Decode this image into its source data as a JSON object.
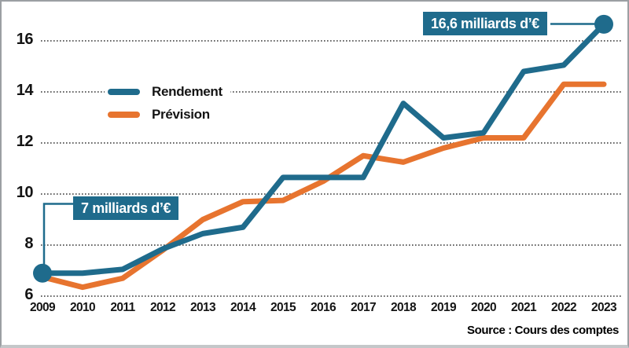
{
  "source": "Source : Cours des comptes",
  "annotations": {
    "start": {
      "label": "7 milliards d’€"
    },
    "end": {
      "label": "16,6 milliards d’€"
    }
  },
  "colors": {
    "rendement": "#1f6b8c",
    "prevision": "#e7742f",
    "annotation_bg": "#1f6b8c",
    "grid": "#333333",
    "border": "#9b9fa3"
  },
  "chart_data": {
    "type": "line",
    "title": "",
    "xlabel": "",
    "ylabel": "milliards d'€",
    "categories": [
      "2009",
      "2010",
      "2011",
      "2012",
      "2013",
      "2014",
      "2015",
      "2016",
      "2017",
      "2018",
      "2019",
      "2020",
      "2021",
      "2022",
      "2023"
    ],
    "series": [
      {
        "name": "Rendement",
        "color_key": "rendement",
        "values": [
          6.9,
          6.9,
          7.05,
          7.85,
          8.45,
          8.7,
          10.65,
          10.65,
          10.65,
          13.55,
          12.2,
          12.4,
          14.8,
          15.05,
          16.65
        ]
      },
      {
        "name": "Prévision",
        "color_key": "prevision",
        "values": [
          6.75,
          6.35,
          6.7,
          7.8,
          9.0,
          9.7,
          9.75,
          10.5,
          11.5,
          11.25,
          11.8,
          12.2,
          12.2,
          14.3,
          14.3
        ]
      }
    ],
    "yticks": [
      6,
      8,
      10,
      12,
      14,
      16
    ],
    "ylim": [
      6,
      17.3
    ],
    "grid": "dotted-horizontal",
    "legend_position": "top-left-inset",
    "markers": [
      {
        "series": "Rendement",
        "category": "2009",
        "value": 6.9
      },
      {
        "series": "Rendement",
        "category": "2023",
        "value": 16.65
      }
    ]
  }
}
